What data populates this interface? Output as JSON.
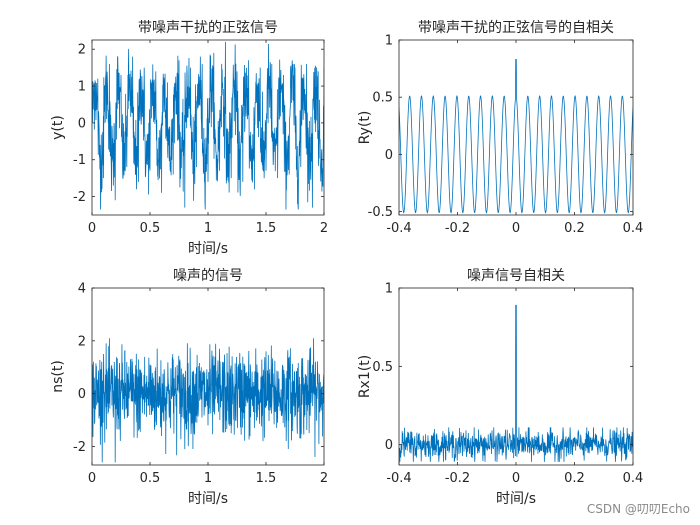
{
  "chart_data": [
    {
      "type": "line",
      "title": "带噪声干扰的正弦信号",
      "xlabel": "时间/s",
      "ylabel": "y(t)",
      "xlim": [
        0,
        2
      ],
      "ylim": [
        -2.5,
        2.25
      ],
      "xticks": [
        0,
        0.5,
        1,
        1.5,
        2
      ],
      "xtick_labels": [
        "0",
        "0.5",
        "1",
        "1.5",
        "2"
      ],
      "yticks": [
        -2,
        -1,
        0,
        1,
        2
      ],
      "ytick_labels": [
        "-2",
        "-1",
        "0",
        "1",
        "2"
      ],
      "series": [
        {
          "color": "#0072BD",
          "description": "sine (~10 Hz, amplitude ~1) plus random noise, sampled ~1000 points over 0–2 s",
          "x": [
            0,
            0.05,
            0.1,
            0.15,
            0.2,
            0.25,
            0.3,
            0.35,
            0.4,
            0.45,
            0.5,
            0.55,
            0.6,
            0.65,
            0.7,
            0.75,
            0.8,
            0.85,
            0.9,
            0.95,
            1.0,
            1.05,
            1.1,
            1.15,
            1.2,
            1.25,
            1.3,
            1.35,
            1.4,
            1.45,
            1.5,
            1.55,
            1.6,
            1.65,
            1.7,
            1.75,
            1.8,
            1.85,
            1.9,
            1.95,
            2.0
          ],
          "y": [
            0.1,
            1.2,
            -1.5,
            1.6,
            -2.1,
            1.3,
            -1.2,
            1.8,
            -1.6,
            1.5,
            -1.3,
            1.4,
            -1.9,
            1.1,
            -1.4,
            1.7,
            -2.3,
            1.5,
            -1.2,
            1.6,
            -1.6,
            1.9,
            -1.3,
            2.2,
            -1.5,
            1.4,
            -1.6,
            1.7,
            -1.8,
            1.5,
            -1.3,
            1.6,
            -1.5,
            1.3,
            -1.4,
            1.5,
            -1.2,
            1.6,
            -2.3,
            1.4,
            1.5
          ]
        }
      ]
    },
    {
      "type": "line",
      "title": "带噪声干扰的正弦信号的自相关",
      "xlabel": "",
      "ylabel": "Ry(t)",
      "xlim": [
        -0.4,
        0.4
      ],
      "ylim": [
        -0.53,
        1
      ],
      "xticks": [
        -0.4,
        -0.2,
        0,
        0.2,
        0.4
      ],
      "xtick_labels": [
        "-0.4",
        "-0.2",
        "0",
        "0.2",
        "0.4"
      ],
      "yticks": [
        -0.5,
        0,
        0.5,
        1
      ],
      "ytick_labels": [
        "-0.5",
        "0",
        "0.5",
        "1"
      ],
      "series": [
        {
          "color": "#0072BD",
          "description": "autocorrelation: cosine of period ~0.04 s, amplitude ~0.5, narrow spike at lag 0 reaching ~0.83",
          "period": 0.0404,
          "amplitude": 0.51,
          "peak_at_zero": 0.83
        }
      ]
    },
    {
      "type": "line",
      "title": "噪声的信号",
      "xlabel": "时间/s",
      "ylabel": "ns(t)",
      "xlim": [
        0,
        2
      ],
      "ylim": [
        -2.7,
        4
      ],
      "xticks": [
        0,
        0.5,
        1,
        1.5,
        2
      ],
      "xtick_labels": [
        "0",
        "0.5",
        "1",
        "1.5",
        "2"
      ],
      "yticks": [
        -2,
        0,
        2,
        4
      ],
      "ytick_labels": [
        "-2",
        "0",
        "2",
        "4"
      ],
      "series": [
        {
          "color": "#0072BD",
          "description": "random noise, roughly within -2.6 to 2.1",
          "x": [
            0,
            0.1,
            0.2,
            0.3,
            0.4,
            0.5,
            0.6,
            0.7,
            0.8,
            0.9,
            1.0,
            1.1,
            1.2,
            1.3,
            1.4,
            1.5,
            1.6,
            1.7,
            1.8,
            1.9,
            2.0
          ],
          "y": [
            0.3,
            1.5,
            -2.6,
            1.2,
            -1.4,
            1.1,
            -1.6,
            1.3,
            -2.1,
            1.0,
            -1.2,
            1.7,
            -1.5,
            1.4,
            -1.3,
            1.6,
            -1.1,
            1.4,
            -1.7,
            1.1,
            0.2
          ]
        }
      ]
    },
    {
      "type": "line",
      "title": "噪声信号自相关",
      "xlabel": "时间/s",
      "ylabel": "Rx1(t)",
      "xlim": [
        -0.4,
        0.4
      ],
      "ylim": [
        -0.13,
        1
      ],
      "xticks": [
        -0.4,
        -0.2,
        0,
        0.2,
        0.4
      ],
      "xtick_labels": [
        "-0.4",
        "-0.2",
        "0",
        "0.2",
        "0.4"
      ],
      "yticks": [
        0,
        0.5,
        1
      ],
      "ytick_labels": [
        "0",
        "0.5",
        "1"
      ],
      "series": [
        {
          "color": "#0072BD",
          "description": "noise autocorrelation: near-zero fluctuations (about -0.1 to 0.1) with a single spike at lag 0 reaching ~0.89",
          "peak_at_zero": 0.89,
          "fluctuation": 0.08
        }
      ]
    }
  ],
  "watermark": "CSDN @叨叨Echo"
}
